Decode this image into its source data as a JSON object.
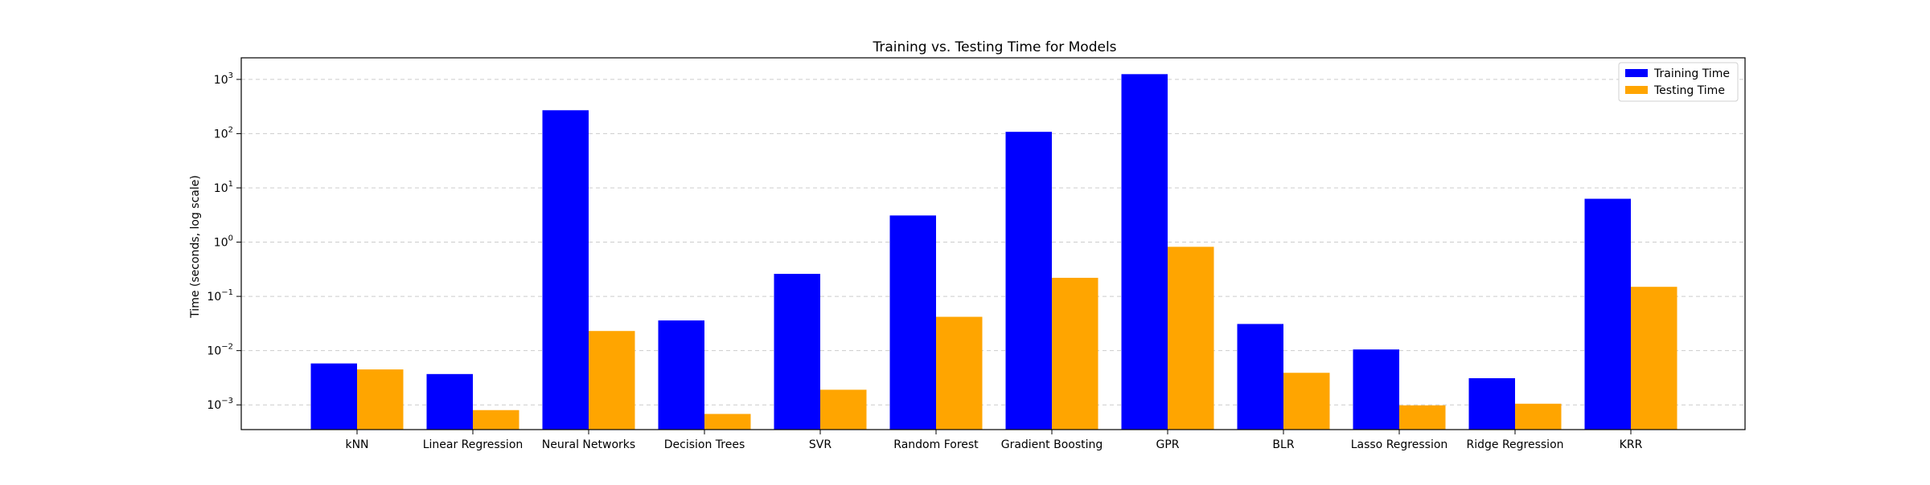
{
  "chart_data": {
    "type": "bar",
    "title": "Training vs. Testing Time for Models",
    "xlabel": "",
    "ylabel": "Time (seconds, log scale)",
    "y_scale": "log",
    "ylim": [
      0.00035,
      2500
    ],
    "yticks": [
      0.001,
      0.01,
      0.1,
      1,
      10,
      100,
      1000
    ],
    "ytick_labels": [
      {
        "base": "10",
        "exp": "−3"
      },
      {
        "base": "10",
        "exp": "−2"
      },
      {
        "base": "10",
        "exp": "−1"
      },
      {
        "base": "10",
        "exp": "0"
      },
      {
        "base": "10",
        "exp": "1"
      },
      {
        "base": "10",
        "exp": "2"
      },
      {
        "base": "10",
        "exp": "3"
      }
    ],
    "grid": "y-dashed",
    "legend_position": "top-right",
    "categories": [
      "kNN",
      "Linear Regression",
      "Neural Networks",
      "Decision Trees",
      "SVR",
      "Random Forest",
      "Gradient Boosting",
      "GPR",
      "BLR",
      "Lasso Regression",
      "Ridge Regression",
      "KRR"
    ],
    "series": [
      {
        "name": "Training Time",
        "color": "#0000ff",
        "values": [
          0.0058,
          0.0037,
          270,
          0.036,
          0.26,
          3.1,
          108,
          1250,
          0.031,
          0.0105,
          0.0031,
          6.3
        ]
      },
      {
        "name": "Testing Time",
        "color": "#ffa500",
        "values": [
          0.0045,
          0.0008,
          0.023,
          0.00068,
          0.0019,
          0.042,
          0.22,
          0.82,
          0.0039,
          0.00098,
          0.00105,
          0.15
        ]
      }
    ]
  }
}
